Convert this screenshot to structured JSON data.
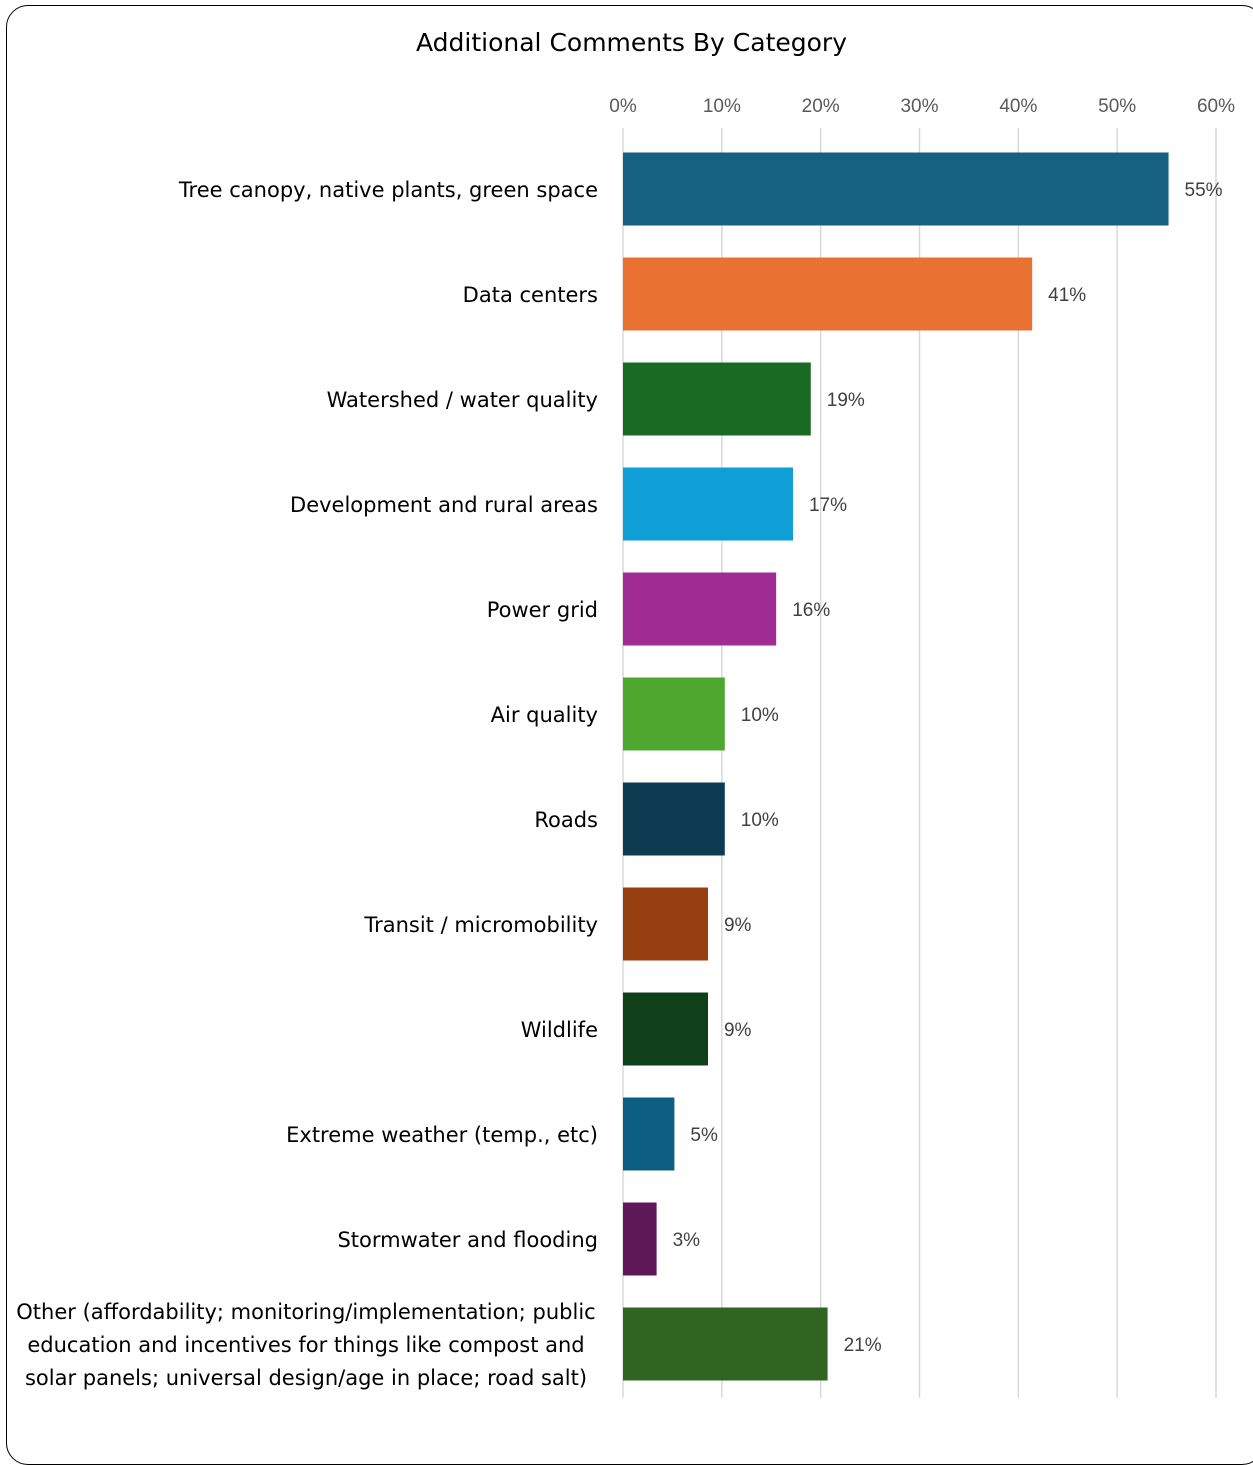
{
  "chart_data": {
    "type": "bar",
    "orientation": "horizontal",
    "title": "Additional Comments By Category",
    "xlabel": "",
    "ylabel": "",
    "xlim": [
      0,
      60
    ],
    "x_ticks": [
      "0%",
      "10%",
      "20%",
      "30%",
      "40%",
      "50%",
      "60%"
    ],
    "x_axis_position": "top",
    "grid": true,
    "legend": "none",
    "categories": [
      "Tree canopy, native plants, green space",
      "Data centers",
      "Watershed / water quality",
      "Development and rural areas",
      "Power grid",
      "Air quality",
      "Roads",
      "Transit / micromobility",
      "Wildlife",
      "Extreme weather (temp., etc)",
      "Stormwater and flooding",
      "Other (affordability; monitoring/implementation; public education and incentives for things like compost and solar panels; universal design/age in place; road salt)"
    ],
    "category_label_lines": [
      [
        "Tree canopy, native plants, green space"
      ],
      [
        "Data centers"
      ],
      [
        "Watershed / water quality"
      ],
      [
        "Development and rural areas"
      ],
      [
        "Power grid"
      ],
      [
        "Air quality"
      ],
      [
        "Roads"
      ],
      [
        "Transit / micromobility"
      ],
      [
        "Wildlife"
      ],
      [
        "Extreme weather (temp., etc)"
      ],
      [
        "Stormwater and flooding"
      ],
      [
        "Other (affordability; monitoring/implementation; public",
        "education and incentives for things like compost and",
        "solar panels; universal design/age in place; road salt)"
      ]
    ],
    "values": [
      55.2,
      41.4,
      19.0,
      17.2,
      15.5,
      10.3,
      10.3,
      8.6,
      8.6,
      5.2,
      3.4,
      20.7
    ],
    "value_labels": [
      "55%",
      "41%",
      "19%",
      "17%",
      "16%",
      "10%",
      "10%",
      "9%",
      "9%",
      "5%",
      "3%",
      "21%"
    ],
    "colors": [
      "#166082",
      "#E97132",
      "#196B24",
      "#0F9ED5",
      "#A02B93",
      "#4EA72E",
      "#0E3A52",
      "#983F12",
      "#10401A",
      "#0D5E83",
      "#5F1958",
      "#2F6520"
    ],
    "grid_color": "#D9D9D9"
  }
}
